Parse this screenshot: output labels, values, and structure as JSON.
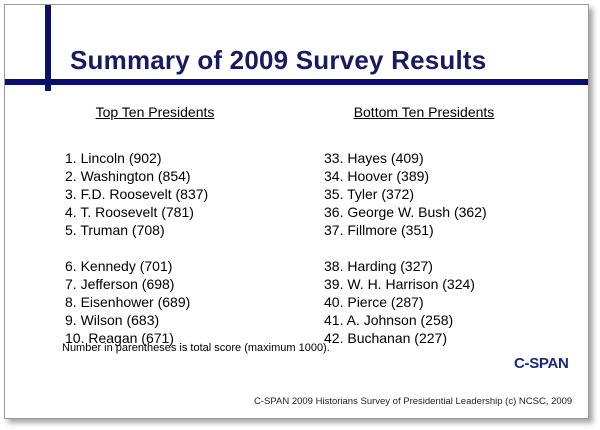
{
  "slide": {
    "title": "Summary of 2009 Survey Results",
    "top_heading": "Top Ten Presidents",
    "bottom_heading": "Bottom Ten Presidents",
    "top_group1": [
      "1. Lincoln (902)",
      "2. Washington (854)",
      "3. F.D. Roosevelt (837)",
      "4. T. Roosevelt (781)",
      "5. Truman (708)"
    ],
    "top_group2": [
      "6. Kennedy (701)",
      "7. Jefferson (698)",
      "8. Eisenhower (689)",
      "9. Wilson (683)",
      "10. Reagan (671)"
    ],
    "bottom_group1": [
      "33. Hayes (409)",
      "34. Hoover (389)",
      "35. Tyler (372)",
      "36. George W. Bush (362)",
      "37. Fillmore (351)"
    ],
    "bottom_group2": [
      "38. Harding (327)",
      "39. W. H. Harrison (324)",
      "40. Pierce (287)",
      "41. A. Johnson (258)",
      "42. Buchanan (227)"
    ],
    "note": "Number in parentheses is total score (maximum 1000).",
    "logo_text": "C-SPAN",
    "footer": "C-SPAN 2009 Historians Survey of Presidential Leadership (c) NCSC, 2009"
  },
  "colors": {
    "accent_bar": "#0b0f6a",
    "title": "#1a1a5e",
    "logo": "#1a2a7a"
  }
}
